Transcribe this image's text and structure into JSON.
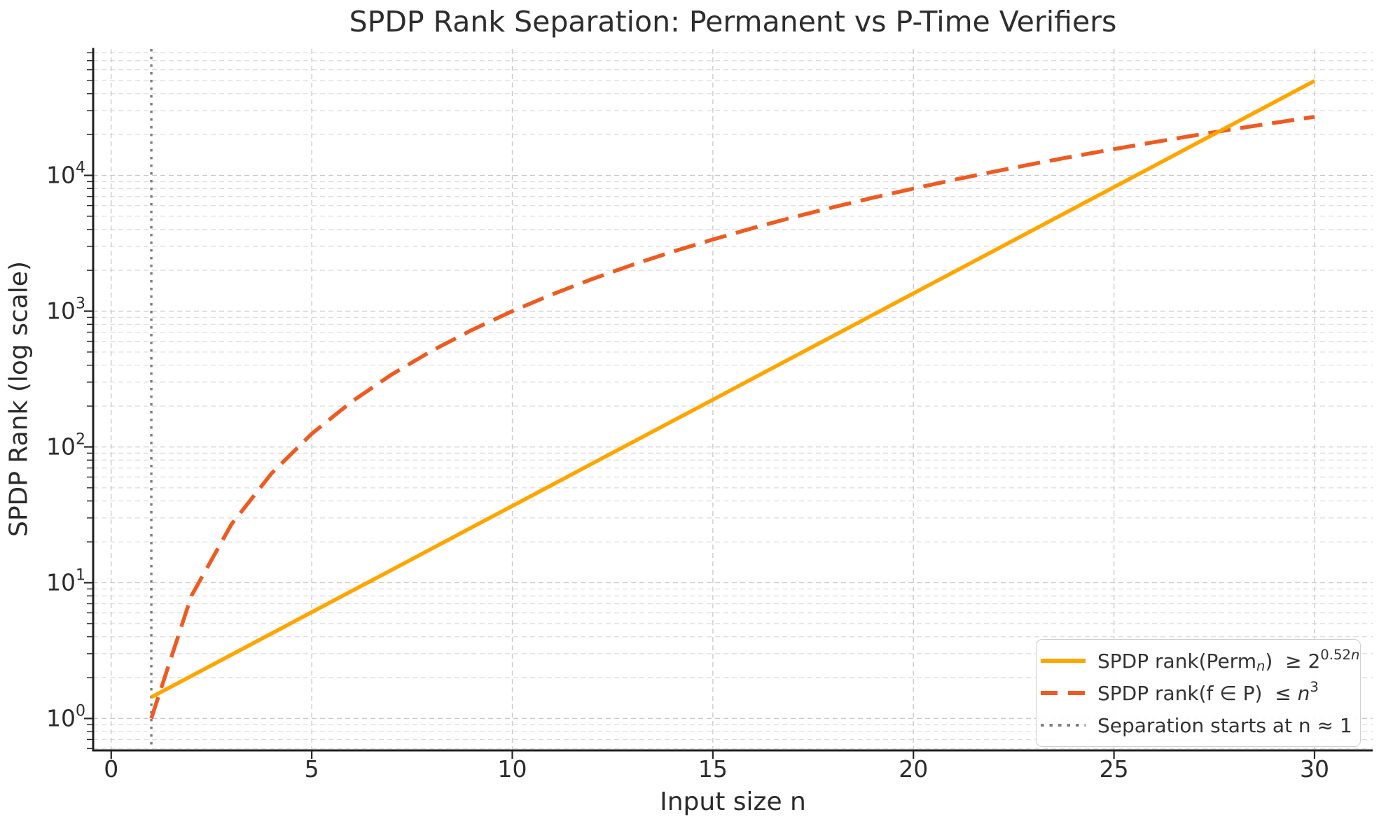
{
  "chart_data": {
    "type": "line",
    "title": "SPDP Rank Separation: Permanent vs P-Time Verifiers",
    "xlabel": "Input size n",
    "ylabel": "SPDP Rank (log scale)",
    "x_ticks": [
      0,
      5,
      10,
      15,
      20,
      25,
      30
    ],
    "y_tick_base": "10",
    "y_tick_exponents": [
      0,
      1,
      2,
      3,
      4
    ],
    "xlim": [
      -0.45,
      31.45
    ],
    "ylim": [
      0.582,
      85300
    ],
    "y_scale": "log",
    "grid": "dashed, major and minor (log minors on y)",
    "legend_position": "lower right",
    "x": [
      1,
      2,
      3,
      4,
      5,
      6,
      7,
      8,
      9,
      10,
      11,
      12,
      13,
      14,
      15,
      16,
      17,
      18,
      19,
      20,
      21,
      22,
      23,
      24,
      25,
      26,
      27,
      28,
      29,
      30
    ],
    "series": [
      {
        "name": "perm-lower-bound",
        "formula": "2^(0.52n)",
        "line": "solid",
        "color": "#FFA500",
        "values": [
          1.434,
          2.056,
          2.949,
          4.229,
          6.064,
          8.696,
          12.47,
          17.88,
          25.64,
          36.77,
          52.72,
          75.6,
          108.4,
          155.5,
          222.9,
          319.7,
          458.4,
          657.3,
          942.5,
          1352,
          1938,
          2779,
          3985,
          5715,
          8195,
          11750,
          16850,
          24160,
          34650,
          49690
        ]
      },
      {
        "name": "ptime-upper-bound",
        "formula": "n^3",
        "line": "dashed",
        "color": "#EE5B22",
        "values": [
          1,
          8,
          27,
          64,
          125,
          216,
          343,
          512,
          729,
          1000,
          1331,
          1728,
          2197,
          2744,
          3375,
          4096,
          4913,
          5832,
          6859,
          8000,
          9261,
          10648,
          12167,
          13824,
          15625,
          17576,
          19683,
          21952,
          24389,
          27000
        ]
      }
    ],
    "vline": {
      "x": 1,
      "line": "dotted",
      "color": "#808080",
      "name": "separation-threshold"
    },
    "legend": [
      {
        "key": "perm",
        "swatch": {
          "style": "solid",
          "color": "#FFA500"
        },
        "segments": [
          {
            "t": "SPDP rank(Perm"
          },
          {
            "t": "n",
            "s": "sub i"
          },
          {
            "t": ")  ≥ 2"
          },
          {
            "t": "0.52",
            "s": "sup"
          },
          {
            "t": "n",
            "s": "sup i"
          }
        ]
      },
      {
        "key": "ptime",
        "swatch": {
          "style": "dashed",
          "color": "#EE5B22"
        },
        "segments": [
          {
            "t": "SPDP rank(f ∈ P)  ≤ "
          },
          {
            "t": "n",
            "s": "i"
          },
          {
            "t": "3",
            "s": "sup"
          }
        ]
      },
      {
        "key": "separation",
        "swatch": {
          "style": "dotted",
          "color": "#808080"
        },
        "segments": [
          {
            "t": "Separation starts at n ≈ 1"
          }
        ]
      }
    ],
    "colors": {
      "perm_line": "#FFA500",
      "ptime_line": "#EE5B22",
      "vline": "#808080",
      "grid_major": "#c8c8c8",
      "grid_minor": "#dcdcdc",
      "spine": "#1f1f1f",
      "tick": "#262626",
      "text": "#2b2b2b",
      "legend_border": "#cfcfcf",
      "legend_bg": "#ffffff"
    }
  }
}
